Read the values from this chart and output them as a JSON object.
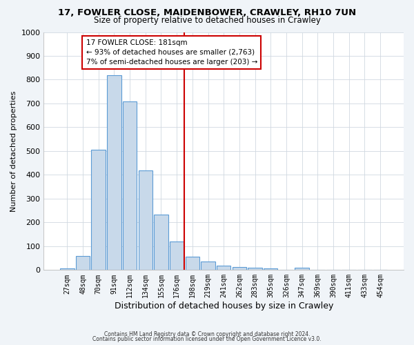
{
  "title1": "17, FOWLER CLOSE, MAIDENBOWER, CRAWLEY, RH10 7UN",
  "title2": "Size of property relative to detached houses in Crawley",
  "xlabel": "Distribution of detached houses by size in Crawley",
  "ylabel": "Number of detached properties",
  "bar_labels": [
    "27sqm",
    "48sqm",
    "70sqm",
    "91sqm",
    "112sqm",
    "134sqm",
    "155sqm",
    "176sqm",
    "198sqm",
    "219sqm",
    "241sqm",
    "262sqm",
    "283sqm",
    "305sqm",
    "326sqm",
    "347sqm",
    "369sqm",
    "390sqm",
    "411sqm",
    "433sqm",
    "454sqm"
  ],
  "bar_values": [
    8,
    60,
    505,
    820,
    710,
    420,
    232,
    120,
    57,
    35,
    18,
    12,
    10,
    8,
    0,
    10,
    0,
    0,
    0,
    0,
    0
  ],
  "bar_color": "#c8d9ea",
  "bar_edge_color": "#5b9bd5",
  "vline_color": "#cc0000",
  "annotation_title": "17 FOWLER CLOSE: 181sqm",
  "annotation_line1": "← 93% of detached houses are smaller (2,763)",
  "annotation_line2": "7% of semi-detached houses are larger (203) →",
  "annotation_box_facecolor": "#ffffff",
  "annotation_box_edgecolor": "#cc0000",
  "ylim": [
    0,
    1000
  ],
  "yticks": [
    0,
    100,
    200,
    300,
    400,
    500,
    600,
    700,
    800,
    900,
    1000
  ],
  "plot_bg_color": "#ffffff",
  "fig_bg_color": "#f0f4f8",
  "footer1": "Contains HM Land Registry data © Crown copyright and database right 2024.",
  "footer2": "Contains public sector information licensed under the Open Government Licence v3.0."
}
